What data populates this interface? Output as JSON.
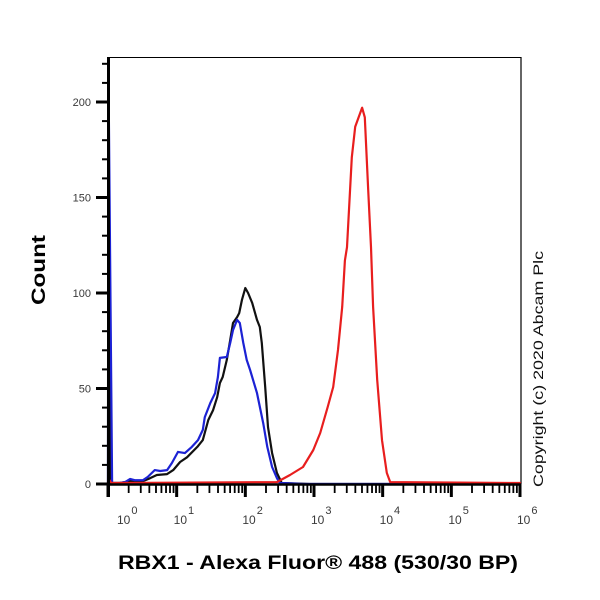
{
  "figure": {
    "y_axis_label": "Count",
    "x_axis_label": "RBX1 - Alexa Fluor® 488 (530/30 BP)",
    "copyright": "Copyright (c) 2020 Abcam Plc"
  },
  "chart_data": {
    "type": "line",
    "title": "",
    "xlabel": "RBX1 - Alexa Fluor® 488 (530/30 BP)",
    "ylabel": "Count",
    "x_scale": "log10",
    "xlim": [
      1,
      1000000
    ],
    "ylim": [
      0,
      224
    ],
    "grid": false,
    "legend": null,
    "x_ticks": [
      {
        "base": "10",
        "exp": "0"
      },
      {
        "base": "10",
        "exp": "1"
      },
      {
        "base": "10",
        "exp": "2"
      },
      {
        "base": "10",
        "exp": "3"
      },
      {
        "base": "10",
        "exp": "4"
      },
      {
        "base": "10",
        "exp": "5"
      },
      {
        "base": "10",
        "exp": "6"
      }
    ],
    "y_ticks": [
      "0",
      "50",
      "100",
      "150",
      "200"
    ],
    "y_tick_values": [
      0,
      50,
      100,
      150,
      200
    ],
    "y_minor_step": 10,
    "y_minor_max": 220,
    "annotations": [
      "Copyright (c) 2020 Abcam Plc"
    ],
    "series": [
      {
        "name": "Black trace",
        "color": "#111111",
        "x_log10": [
          0.0,
          0.005,
          0.03,
          0.17,
          0.32,
          0.51,
          0.61,
          0.71,
          0.86,
          0.95,
          1.05,
          1.15,
          1.3,
          1.38,
          1.46,
          1.53,
          1.59,
          1.63,
          1.67,
          1.73,
          1.78,
          1.82,
          1.88,
          1.91,
          1.95,
          2.0,
          2.04,
          2.1,
          2.17,
          2.21,
          2.24,
          2.29,
          2.33,
          2.39,
          2.46,
          2.53,
          2.94,
          6.0
        ],
        "y": [
          0,
          214,
          0.5,
          0.5,
          1.5,
          1.5,
          3,
          4.7,
          5.2,
          7.3,
          11.5,
          14,
          19.4,
          23,
          33.5,
          38.7,
          45.5,
          52.9,
          56,
          65,
          75.4,
          84.3,
          87.4,
          89.5,
          96.3,
          102.6,
          100,
          94.8,
          85.9,
          82.2,
          73.8,
          50.8,
          29.8,
          16.2,
          5.8,
          0.5,
          0,
          0
        ]
      },
      {
        "name": "Blue trace",
        "color": "#1c22d4",
        "x_log10": [
          0.0,
          0.008,
          0.06,
          0.17,
          0.25,
          0.32,
          0.39,
          0.51,
          0.58,
          0.68,
          0.76,
          0.86,
          0.93,
          1.02,
          1.12,
          1.22,
          1.31,
          1.38,
          1.41,
          1.49,
          1.56,
          1.6,
          1.63,
          1.73,
          1.78,
          1.82,
          1.88,
          1.92,
          1.97,
          2.02,
          2.07,
          2.17,
          2.26,
          2.32,
          2.39,
          2.46,
          2.5,
          2.84,
          6.0
        ],
        "y": [
          0,
          214,
          0.5,
          0.5,
          1,
          2.6,
          2,
          2,
          3.7,
          7.3,
          6.8,
          7.3,
          11,
          16.8,
          16.2,
          19.4,
          23,
          28.3,
          35,
          42.4,
          47.6,
          56,
          66,
          66.5,
          73.8,
          80.6,
          85.9,
          84.3,
          73.8,
          65,
          59.7,
          47.6,
          31.9,
          19.4,
          8.9,
          3.1,
          0.5,
          0,
          0
        ]
      },
      {
        "name": "Red trace",
        "color": "#e81e1e",
        "x_log10": [
          0.0,
          0.02,
          0.05,
          2.46,
          2.65,
          2.84,
          2.99,
          3.09,
          3.2,
          3.28,
          3.35,
          3.41,
          3.45,
          3.48,
          3.55,
          3.6,
          3.7,
          3.74,
          3.79,
          3.83,
          3.86,
          3.92,
          3.99,
          4.06,
          4.11,
          6.0
        ],
        "y": [
          1,
          2,
          0.5,
          1,
          4.7,
          8.9,
          17.8,
          26.7,
          40.3,
          50.8,
          70.2,
          92.7,
          117,
          124,
          171,
          187,
          197,
          192,
          154,
          124,
          92.7,
          54.5,
          23,
          5.8,
          1,
          0.5
        ]
      }
    ]
  }
}
